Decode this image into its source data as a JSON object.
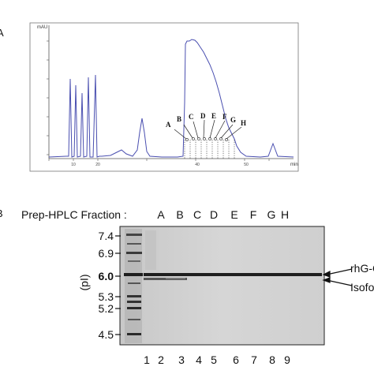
{
  "panel_a": {
    "label": "A",
    "y_unit": "mAU",
    "x_unit": "min",
    "fraction_labels": [
      "A",
      "B",
      "C",
      "D",
      "E",
      "F",
      "G",
      "H"
    ]
  },
  "panel_b": {
    "label": "B",
    "header": "Prep-HPLC Fraction :",
    "fraction_letters": [
      "A",
      "B",
      "C",
      "D",
      "E",
      "F",
      "G",
      "H"
    ],
    "pi_axis_label": "(pI)",
    "pi_markers": [
      "7.4",
      "6.9",
      "6.0",
      "5.3",
      "5.2",
      "4.5"
    ],
    "lane_numbers": [
      "1",
      "2",
      "3",
      "4",
      "5",
      "6",
      "7",
      "8",
      "9"
    ],
    "right_labels": [
      "rhG-CS",
      "Isoform"
    ]
  },
  "colors": {
    "trace": "#4a4fb0",
    "axis": "#555555",
    "gel_bg": "#d2d2d2"
  }
}
